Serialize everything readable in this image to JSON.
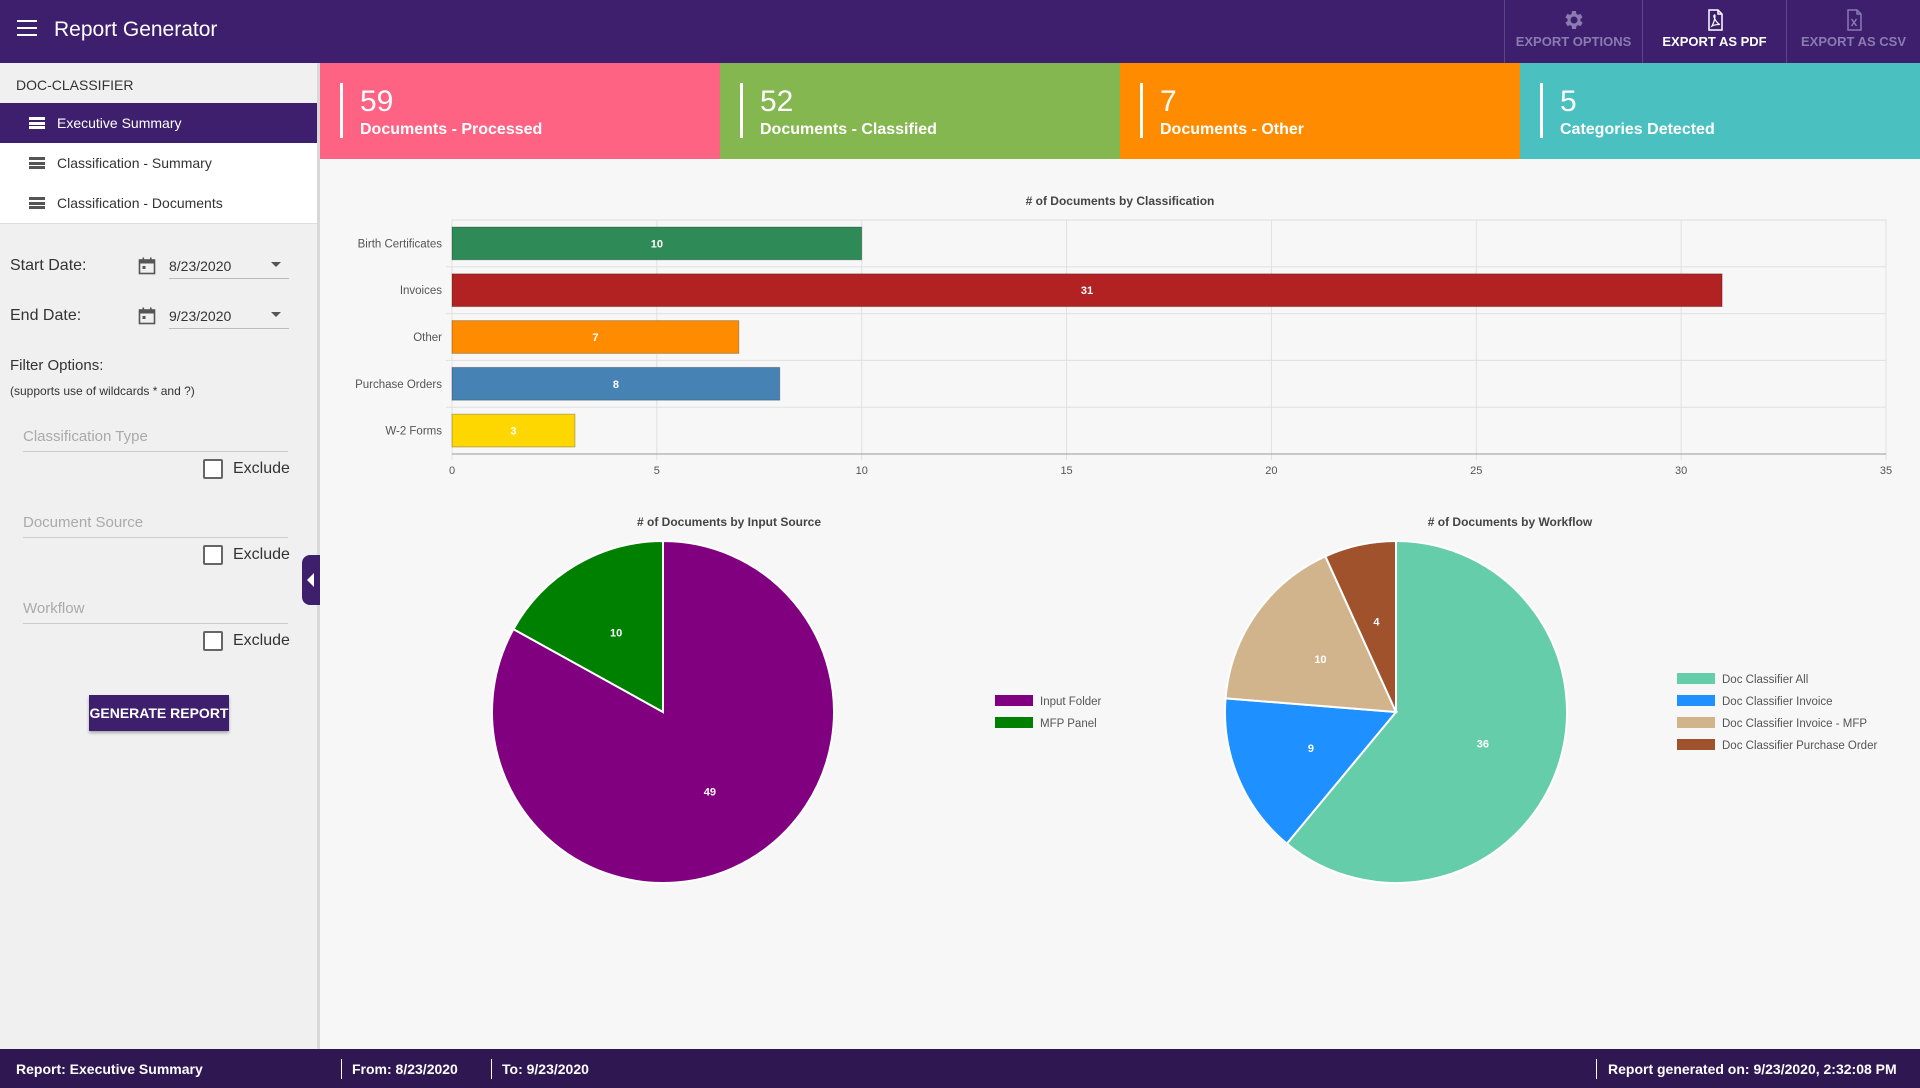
{
  "app": {
    "title": "Report Generator"
  },
  "toolbar": {
    "export_options": "EXPORT OPTIONS",
    "export_pdf": "EXPORT AS PDF",
    "export_csv": "EXPORT AS CSV"
  },
  "sidebar": {
    "header": "DOC-CLASSIFIER",
    "items": [
      {
        "label": "Executive Summary",
        "active": true
      },
      {
        "label": "Classification - Summary",
        "active": false
      },
      {
        "label": "Classification - Documents",
        "active": false
      }
    ],
    "start_label": "Start Date:",
    "start_value": "8/23/2020",
    "end_label": "End Date:",
    "end_value": "9/23/2020",
    "filter_title": "Filter Options:",
    "filter_note": "(supports use of wildcards * and ?)",
    "filters": [
      {
        "placeholder": "Classification Type",
        "exclude": "Exclude"
      },
      {
        "placeholder": "Document Source",
        "exclude": "Exclude"
      },
      {
        "placeholder": "Workflow",
        "exclude": "Exclude"
      }
    ],
    "generate": "GENERATE REPORT"
  },
  "cards": [
    {
      "value": "59",
      "label": "Documents - Processed",
      "color": "#ff6384"
    },
    {
      "value": "52",
      "label": "Documents - Classified",
      "color": "#84b74f"
    },
    {
      "value": "7",
      "label": "Documents - Other",
      "color": "#ff8c00"
    },
    {
      "value": "5",
      "label": "Categories Detected",
      "color": "#4bc0c0"
    }
  ],
  "chart_data": [
    {
      "type": "bar",
      "orientation": "horizontal",
      "title": "# of Documents by Classification",
      "categories": [
        "Birth Certificates",
        "Invoices",
        "Other",
        "Purchase Orders",
        "W-2 Forms"
      ],
      "values": [
        10,
        31,
        7,
        8,
        3
      ],
      "colors": [
        "#2e8b57",
        "#b22222",
        "#ff8c00",
        "#4682b4",
        "#ffd700"
      ],
      "xlim": [
        0,
        35
      ],
      "xticks": [
        0,
        5,
        10,
        15,
        20,
        25,
        30,
        35
      ],
      "grid": true
    },
    {
      "type": "pie",
      "title": "# of Documents by Input Source",
      "labels": [
        "Input Folder",
        "MFP Panel"
      ],
      "values": [
        49,
        10
      ],
      "colors": [
        "#800080",
        "#008000"
      ],
      "legend": "right"
    },
    {
      "type": "pie",
      "title": "# of Documents by Workflow",
      "labels": [
        "Doc Classifier All",
        "Doc Classifier Invoice",
        "Doc Classifier Invoice - MFP",
        "Doc Classifier Purchase Order"
      ],
      "values": [
        36,
        9,
        10,
        4
      ],
      "colors": [
        "#66cdaa",
        "#1e90ff",
        "#d2b48c",
        "#a0522d"
      ],
      "legend": "right"
    }
  ],
  "footer": {
    "report": "Report: Executive Summary",
    "from": "From: 8/23/2020",
    "to": "To: 9/23/2020",
    "generated": "Report generated on: 9/23/2020, 2:32:08 PM"
  }
}
